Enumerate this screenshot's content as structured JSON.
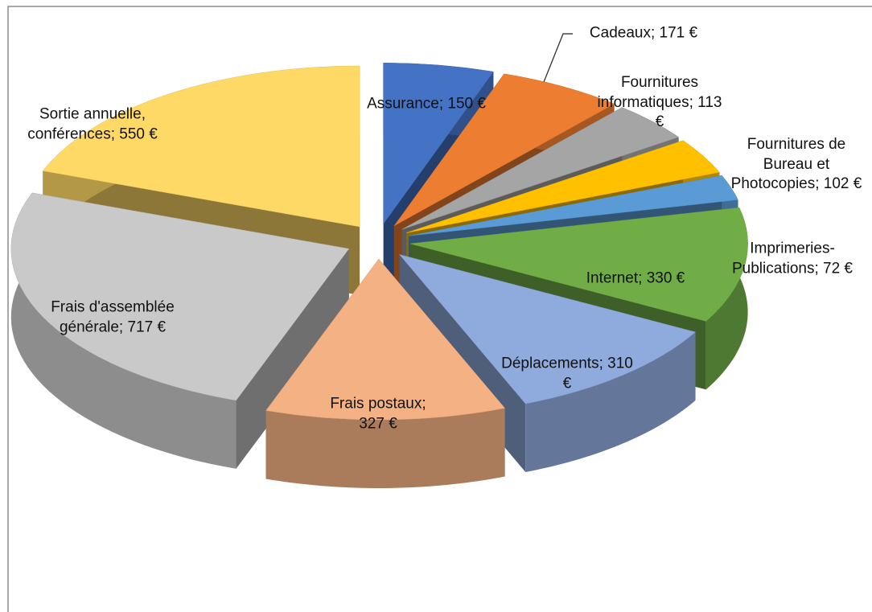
{
  "chart_data": {
    "type": "pie",
    "values": [
      150,
      171,
      113,
      102,
      72,
      330,
      310,
      327,
      717,
      550
    ],
    "value_labels": [
      "Assurance; 150 €",
      "Cadeaux; 171 €",
      "Fournitures informatiques; 113 €",
      "Fournitures de Bureau et Photocopies; 102 €",
      "Imprimeries-Publications; 72 €",
      "Internet; 330 €",
      "Déplacements; 310 €",
      "Frais postaux; 327 €",
      "Frais d'assemblée générale; 717 €",
      "Sortie annuelle, conférences; 550 €"
    ],
    "colors": [
      "#4472c4",
      "#ed7d31",
      "#a5a5a5",
      "#ffc000",
      "#5b9bd5",
      "#70ad47",
      "#8faadc",
      "#f4b183",
      "#c9c9c9",
      "#ffd966"
    ]
  }
}
